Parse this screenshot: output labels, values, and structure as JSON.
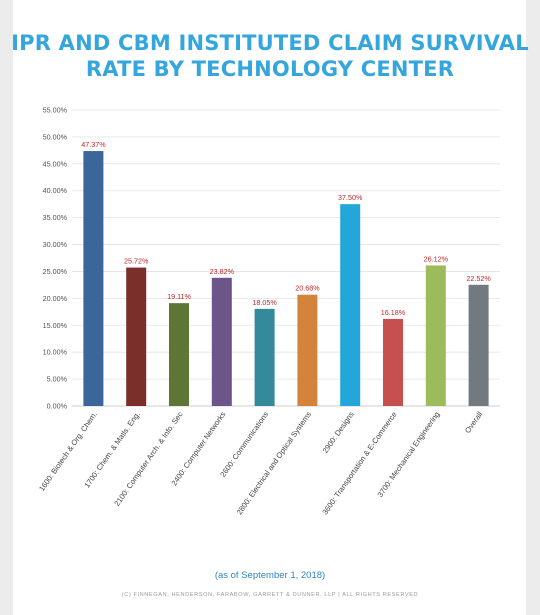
{
  "header": {
    "title_line1": "IPR AND CBM INSTITUTED CLAIM SURVIVAL",
    "title_line2": "RATE BY TECHNOLOGY CENTER"
  },
  "footer": {
    "as_of": "(as of September 1, 2018)",
    "copyright": "(C) FINNEGAN, HENDERSON, FARABOW, GARRETT & DUNNER, LLP | ALL RIGHTS RESERVED"
  },
  "chart_data": {
    "type": "bar",
    "title": "IPR AND CBM INSTITUTED CLAIM SURVIVAL RATE BY TECHNOLOGY CENTER",
    "xlabel": "",
    "ylabel": "",
    "ylim": [
      0,
      55
    ],
    "yticks": [
      "0.00%",
      "5.00%",
      "10.00%",
      "15.00%",
      "20.00%",
      "25.00%",
      "30.00%",
      "35.00%",
      "40.00%",
      "45.00%",
      "50.00%",
      "55.00%"
    ],
    "grid": true,
    "legend": "none",
    "categories": [
      "1600: Biotech & Org. Chem.",
      "1700: Chem. & Matls. Eng.",
      "2100: Computer Arch. & Info. Sec",
      "2400: Computer Networks",
      "2600: Communications",
      "2800: Electrical and Optical Systems",
      "2900: Designs",
      "3600: Transportation & E-Commerce",
      "3700: Mechanical Engineering",
      "Overall"
    ],
    "values": [
      47.37,
      25.72,
      19.11,
      23.82,
      18.05,
      20.68,
      37.5,
      16.18,
      26.12,
      22.52
    ],
    "value_labels": [
      "47.37%",
      "25.72%",
      "19.11%",
      "23.82%",
      "18.05%",
      "20.68%",
      "37.50%",
      "16.18%",
      "26.12%",
      "22.52%"
    ],
    "colors": [
      "#3a6699",
      "#7b2f2b",
      "#5d7636",
      "#6b5589",
      "#34899a",
      "#d4833a",
      "#23a6da",
      "#c6504d",
      "#9cbb5b",
      "#727a80"
    ],
    "value_label_color": "#c0272d"
  }
}
